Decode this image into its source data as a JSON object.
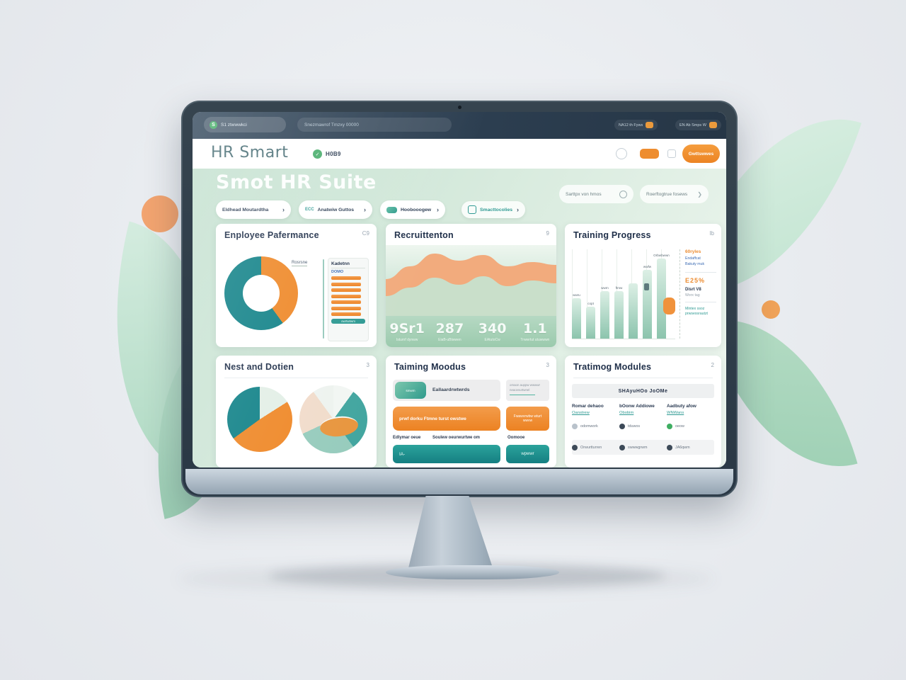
{
  "browser": {
    "tab_label": "S1 ztwwwkci",
    "address": "Snezmawrof Tmzxy 00000",
    "chips": [
      {
        "label": "NA12 th Fyws"
      },
      {
        "label": "EN Ab Smps W"
      }
    ]
  },
  "header": {
    "logo": "HR Smart",
    "badge_label": "H0B9",
    "cta_label": "Gwttswwes"
  },
  "hero": {
    "title": "Smot HR Suite",
    "pills": [
      {
        "label": "Eldhead Moutardtha",
        "chevron": "›"
      },
      {
        "prefix": "ECC",
        "label": "Anatwiw Guttos",
        "chevron": "›"
      },
      {
        "label": "Hoobooogew",
        "chevron": "›"
      },
      {
        "label": "Smacttocolies",
        "chevron": "›"
      }
    ],
    "search_left_placeholder": "Sarttpx von hmos",
    "search_right_placeholder": "Roerftogtrue fosews"
  },
  "cards": {
    "employee": {
      "title": "Enployee Pafermance",
      "corner": "C9",
      "side_label": "Rosrsne",
      "panel": {
        "header": "Kadetnn",
        "sub": "DOMO",
        "footer": "owrtwtwm"
      }
    },
    "recruitment": {
      "title": "Recruittenton",
      "corner": "9",
      "kpis": [
        {
          "value": "9Sr1",
          "label": "Isturnf dynww"
        },
        {
          "value": "287",
          "label": "EiaB-uBtwwen"
        },
        {
          "value": "340",
          "label": "EAtutoCw"
        },
        {
          "value": "1.1",
          "label": "Trwwrtut utuwwwn"
        }
      ]
    },
    "training": {
      "title": "Training Progress",
      "corner": "Ib",
      "panel": {
        "line1": "60ryles",
        "line2a": "Endaffcat",
        "line2b": "Bakuty muk",
        "line3": "E25%",
        "line4": "Disrt V8",
        "line5": "Worx tag",
        "line6a": "Mintex ssoz",
        "line6b": "prwsexsrautzt"
      }
    },
    "nest": {
      "title": "Nest and Dotien",
      "corner": "3"
    },
    "modules_mid": {
      "title": "Taiming Moodus",
      "corner": "3",
      "chip_label": "smwm",
      "row1_text": "Eallaardrwtwrds",
      "side1_line1": "omaon auppw wwwwr",
      "side1_line2": "neaovvurtwnel",
      "orange_bar_text": "prwf dorku  Ftmne turst owstwe",
      "orange_box_text": "Fwawvrwbw wturt wwvw",
      "labels": [
        "Edlymar oeue",
        "Soulew oeurwurtwe om",
        "Oomooe"
      ],
      "teal_bar_text": "IA-",
      "teal_box_text": "wpwwr"
    },
    "modules_table": {
      "title": "Tratimog Modules",
      "corner": "2",
      "band": "SHAyuHOo JoOMe",
      "columns": [
        {
          "header": "Romar dehaoo",
          "link": "Oanstrew"
        },
        {
          "header": "bOonw Addiowe",
          "link": "Obobim"
        },
        {
          "header": "Aadbuty afow",
          "link": "WNWans"
        }
      ],
      "row1": [
        {
          "text": "odomwork"
        },
        {
          "text": "tduwos"
        },
        {
          "text": "oeow"
        }
      ],
      "row2": [
        {
          "text": "Orwurtturren"
        },
        {
          "text": "swwwgrwm"
        },
        {
          "text": "JA6qwm"
        }
      ]
    }
  },
  "colors": {
    "teal": "#15848a",
    "orange": "#ef8a2b",
    "navy": "#20304a",
    "green_bg": "#cde6d6",
    "dark_bar": "#2c3e50"
  },
  "chart_data": [
    {
      "type": "pie",
      "title": "Enployee Pafermance donut",
      "labels": [
        "orange",
        "teal"
      ],
      "values": [
        40,
        60
      ],
      "colors": [
        "#ef8a2b",
        "#15848a"
      ],
      "hole": 0.5
    },
    {
      "type": "area",
      "title": "Recruittenton trend",
      "x": [
        0,
        1,
        2,
        3,
        4,
        5,
        6,
        7
      ],
      "series": [
        {
          "name": "orange-ridge",
          "values": [
            52,
            70,
            88,
            78,
            86,
            70,
            76,
            72
          ],
          "color": "#f2ab7d"
        },
        {
          "name": "green-ridge",
          "values": [
            28,
            40,
            54,
            44,
            56,
            42,
            50,
            46
          ],
          "color": "#c6e1cf"
        }
      ],
      "ylim": [
        0,
        100
      ]
    },
    {
      "type": "bar",
      "title": "Training Progress bars",
      "categories": [
        "1",
        "2",
        "3",
        "4",
        "5",
        "6",
        "7"
      ],
      "values": [
        48,
        38,
        57,
        57,
        66,
        82,
        96
      ],
      "bar_labels": [
        "wwru",
        "copt",
        "wwrn",
        "ftmw",
        "",
        "wwfw",
        "Orbwbwwn"
      ],
      "bar_color_top": "#dcefe5",
      "bar_color_bottom": "#8cc4ad",
      "marker": {
        "bar": 7,
        "color": "#f0923c"
      },
      "ylim": [
        0,
        100
      ]
    },
    {
      "type": "pie",
      "title": "Nest and Dotien pie A",
      "labels": [
        "mint",
        "orange",
        "teal"
      ],
      "values": [
        16,
        49,
        35
      ],
      "colors": [
        "#e3efe7",
        "#ef8a2b",
        "#15848a"
      ]
    },
    {
      "type": "pie",
      "title": "Nest and Dotien pie B",
      "labels": [
        "white",
        "teal",
        "light-teal",
        "peach",
        "white2"
      ],
      "values": [
        10,
        30,
        28,
        22,
        10
      ],
      "colors": [
        "#f2f6f3",
        "#43a6a0",
        "#97ccbd",
        "#f1dccb",
        "#eef3ef"
      ]
    }
  ]
}
